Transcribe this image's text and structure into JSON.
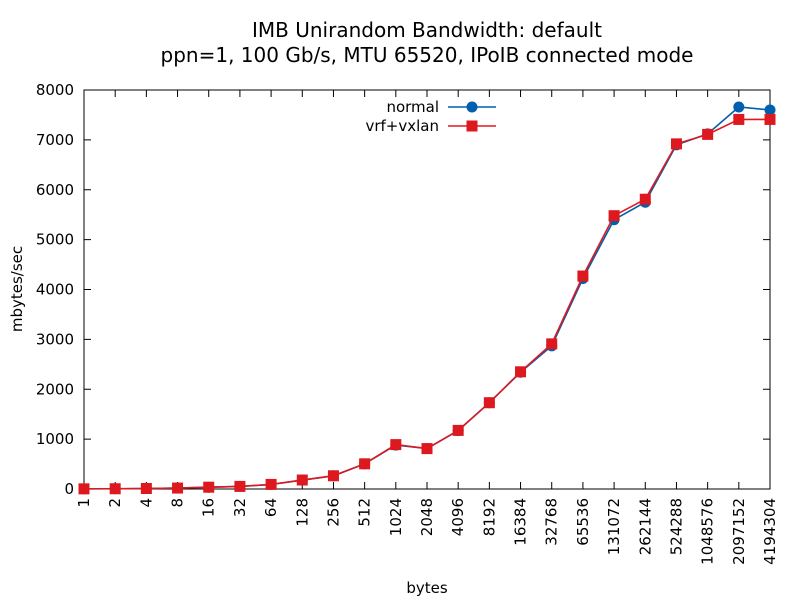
{
  "chart_data": {
    "type": "line",
    "title": "IMB Unirandom Bandwidth: default",
    "subtitle": "ppn=1, 100 Gb/s, MTU 65520, IPoIB connected mode",
    "xlabel": "bytes",
    "ylabel": "mbytes/sec",
    "ylim": [
      0,
      8000
    ],
    "yticks": [
      "0",
      "1000",
      "2000",
      "3000",
      "4000",
      "5000",
      "6000",
      "7000",
      "8000"
    ],
    "grid": false,
    "legend_position": "top-center",
    "categories": [
      "1",
      "2",
      "4",
      "8",
      "16",
      "32",
      "64",
      "128",
      "256",
      "512",
      "1024",
      "2048",
      "4096",
      "8192",
      "16384",
      "32768",
      "65536",
      "131072",
      "262144",
      "524288",
      "1048576",
      "2097152",
      "4194304"
    ],
    "series": [
      {
        "name": "normal",
        "color": "#0060ad",
        "marker": "circle",
        "values": [
          3,
          5,
          10,
          19,
          36,
          52,
          90,
          180,
          265,
          505,
          880,
          810,
          1170,
          1730,
          2340,
          2870,
          4220,
          5400,
          5750,
          6900,
          7120,
          7660,
          7600
        ]
      },
      {
        "name": "vrf+vxlan",
        "color": "#dd181f",
        "marker": "square",
        "values": [
          3,
          5,
          10,
          19,
          36,
          52,
          92,
          180,
          265,
          505,
          890,
          810,
          1175,
          1730,
          2350,
          2910,
          4270,
          5480,
          5810,
          6920,
          7110,
          7410,
          7410
        ]
      }
    ]
  }
}
